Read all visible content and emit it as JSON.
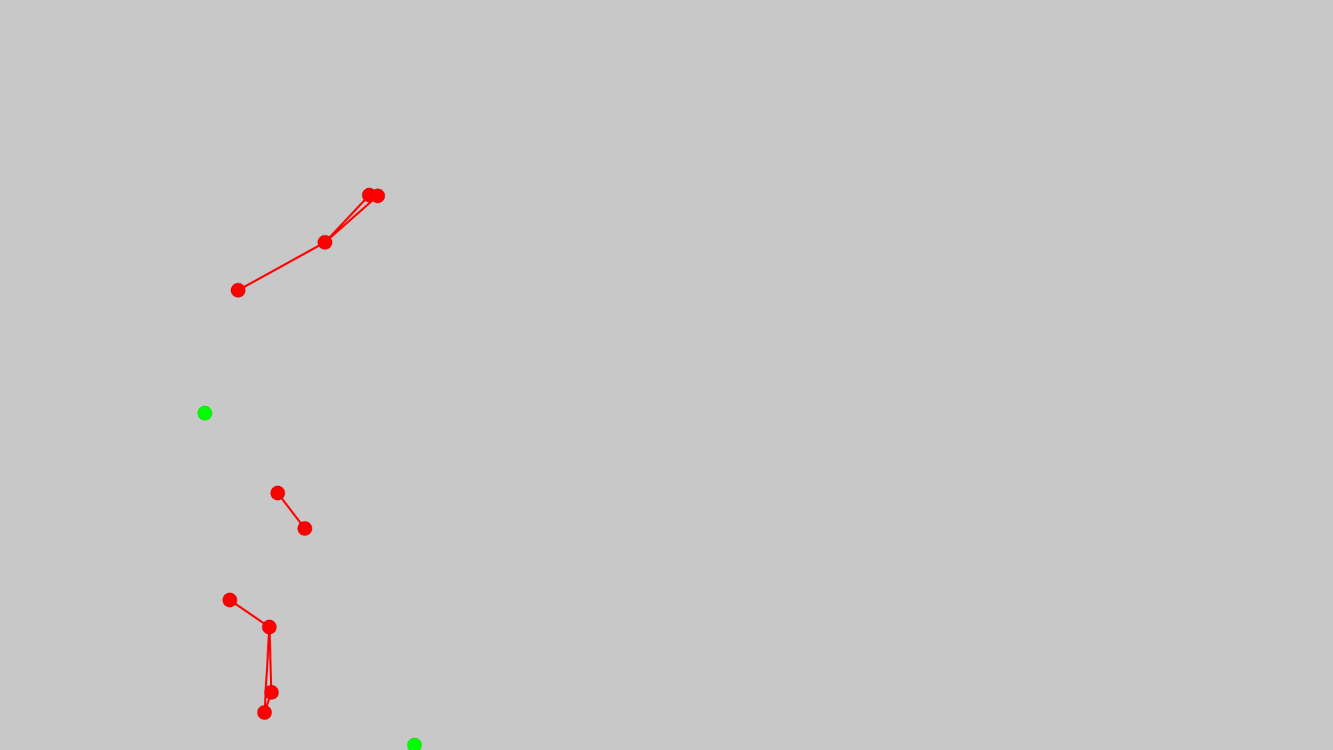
{
  "canvas": {
    "background_color": "#c8c8c8"
  },
  "colors": {
    "enemy": "#ff0000",
    "target": "#00ff00"
  },
  "chains": [
    {
      "id": "chain-1",
      "color": "#ff0000",
      "nodes": [
        "n1a",
        "n1b",
        "n1c",
        "n1d"
      ],
      "edges": [
        [
          "n1a",
          "n1b"
        ],
        [
          "n1b",
          "n1c"
        ],
        [
          "n1b",
          "n1d"
        ]
      ]
    },
    {
      "id": "chain-2",
      "color": "#ff0000",
      "nodes": [
        "n2a",
        "n2b"
      ],
      "edges": [
        [
          "n2a",
          "n2b"
        ]
      ]
    },
    {
      "id": "chain-3",
      "color": "#ff0000",
      "nodes": [
        "n3a",
        "n3b",
        "n3c",
        "n3d"
      ],
      "edges": [
        [
          "n3a",
          "n3b"
        ],
        [
          "n3b",
          "n3c"
        ],
        [
          "n3b",
          "n3d"
        ],
        [
          "n3c",
          "n3d"
        ]
      ]
    }
  ],
  "targets": [
    {
      "id": "target-1",
      "color": "#00ff00"
    },
    {
      "id": "target-2",
      "color": "#00ff00"
    }
  ]
}
